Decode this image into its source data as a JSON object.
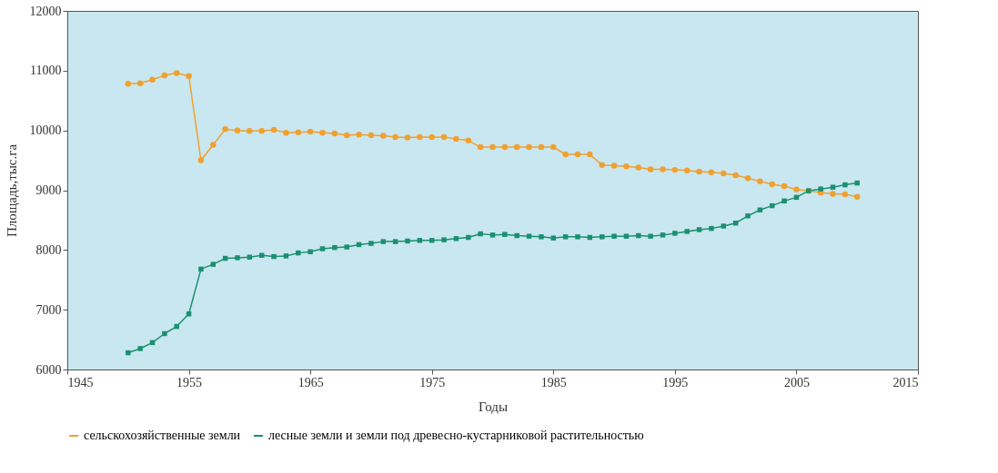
{
  "chart_data": {
    "type": "line",
    "xlabel": "Годы",
    "ylabel": "Площадь,тыс.га",
    "x": [
      1950,
      1951,
      1952,
      1953,
      1954,
      1955,
      1956,
      1957,
      1958,
      1959,
      1960,
      1961,
      1962,
      1963,
      1964,
      1965,
      1966,
      1967,
      1968,
      1969,
      1970,
      1971,
      1972,
      1973,
      1974,
      1975,
      1976,
      1977,
      1978,
      1979,
      1980,
      1981,
      1982,
      1983,
      1984,
      1985,
      1986,
      1987,
      1988,
      1989,
      1990,
      1991,
      1992,
      1993,
      1994,
      1995,
      1996,
      1997,
      1998,
      1999,
      2000,
      2001,
      2002,
      2003,
      2004,
      2005,
      2006,
      2007,
      2008,
      2009,
      2010
    ],
    "series": [
      {
        "name": "сельскохозяйственные земли",
        "color": "#f0a030",
        "marker": "circle",
        "values": [
          10780,
          10790,
          10850,
          10920,
          10960,
          10910,
          9500,
          9760,
          10020,
          10000,
          9990,
          9990,
          10010,
          9960,
          9970,
          9980,
          9960,
          9950,
          9920,
          9930,
          9920,
          9910,
          9890,
          9880,
          9890,
          9890,
          9890,
          9860,
          9830,
          9720,
          9720,
          9720,
          9720,
          9720,
          9720,
          9720,
          9600,
          9600,
          9600,
          9420,
          9410,
          9400,
          9380,
          9350,
          9350,
          9340,
          9330,
          9310,
          9300,
          9280,
          9250,
          9200,
          9150,
          9100,
          9070,
          9010,
          8990,
          8960,
          8940,
          8930,
          8890
        ]
      },
      {
        "name": "лесные земли и земли под древесно-кустарниковой растительностью",
        "color": "#1a9070",
        "marker": "square",
        "values": [
          6280,
          6350,
          6450,
          6600,
          6720,
          6930,
          7680,
          7760,
          7860,
          7870,
          7880,
          7910,
          7890,
          7900,
          7950,
          7970,
          8020,
          8040,
          8050,
          8090,
          8110,
          8140,
          8140,
          8150,
          8160,
          8160,
          8170,
          8190,
          8210,
          8270,
          8250,
          8260,
          8240,
          8230,
          8220,
          8200,
          8220,
          8220,
          8210,
          8220,
          8230,
          8230,
          8240,
          8230,
          8250,
          8280,
          8310,
          8340,
          8360,
          8400,
          8450,
          8570,
          8670,
          8740,
          8820,
          8880,
          8990,
          9020,
          9050,
          9090,
          9120
        ]
      }
    ],
    "xlim": [
      1945,
      2015
    ],
    "xticks": [
      1945,
      1955,
      1965,
      1975,
      1985,
      1995,
      2005,
      2015
    ],
    "ylim": [
      6000,
      12000
    ],
    "yticks": [
      6000,
      7000,
      8000,
      9000,
      10000,
      11000,
      12000
    ],
    "grid": false,
    "legend": "bottom",
    "line_style": "solid"
  }
}
